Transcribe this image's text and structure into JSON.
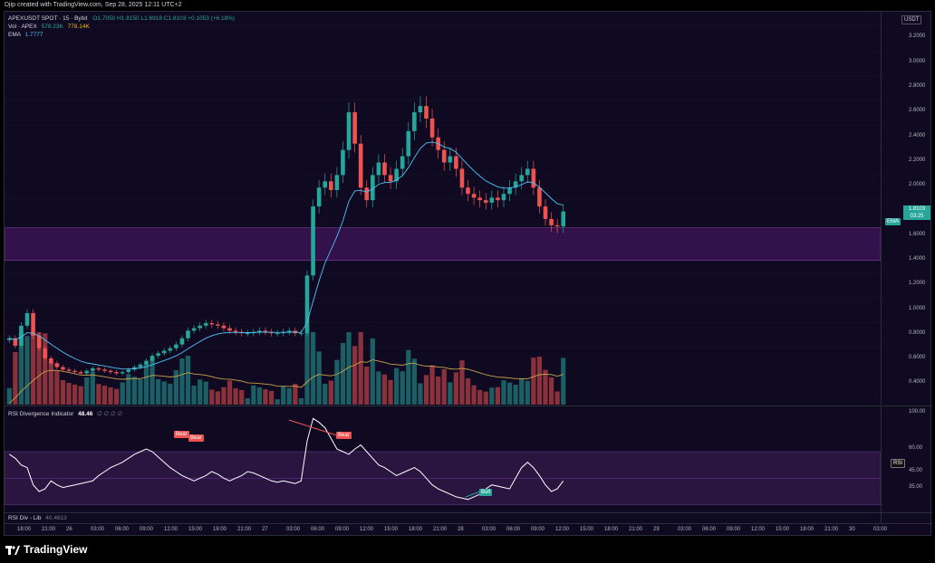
{
  "header": {
    "credit": "Djip created with TradingView.com, Sep 28, 2025 12:11 UTC+2"
  },
  "legend": {
    "symbol": "APEXUSDT SPOT · 15 · Bybit",
    "ohlc": "O1.7050 H1.8150 L1.6918 C1.8103 +0.1053 (+6.18%)",
    "vol_label": "Vol · APEX",
    "vol_value1": "578.23K",
    "vol_value2": "778.14K",
    "ema_label": "EMA",
    "ema_value": "1.7777"
  },
  "price_axis": {
    "currency": "USDT",
    "ticks": [
      "3.2000",
      "3.0000",
      "2.8000",
      "2.6000",
      "2.4000",
      "2.2000",
      "2.0000",
      "1.6000",
      "1.4000",
      "1.2000",
      "1.0000",
      "0.8000",
      "0.6000",
      "0.4000"
    ],
    "last_price": "1.8103",
    "countdown": "03:25",
    "ema_tag": "EMA"
  },
  "rsi": {
    "title": "RSI Divergence Indicator",
    "value": "48.46",
    "extra": "∅ ∅ ∅ ∅",
    "ticks": [
      "100.00",
      "60.00",
      "45.00",
      "35.00",
      "27.00"
    ],
    "tag": "RSI",
    "bear_label": "Bear",
    "bull_label": "Bull"
  },
  "lib_label": "RSI Div - Lib",
  "lib_value": "40.4613",
  "time_axis": [
    "18:00",
    "21:00",
    "26",
    "03:00",
    "06:00",
    "09:00",
    "12:00",
    "15:00",
    "18:00",
    "21:00",
    "27",
    "03:00",
    "06:00",
    "09:00",
    "12:00",
    "15:00",
    "18:00",
    "21:00",
    "28",
    "03:00",
    "06:00",
    "09:00",
    "12:00",
    "15:00",
    "18:00",
    "21:00",
    "29",
    "03:00",
    "06:00",
    "09:00",
    "12:00",
    "15:00",
    "18:00",
    "21:00",
    "30",
    "03:00"
  ],
  "brand": "TradingView",
  "colors": {
    "bg": "#0f0a22",
    "up": "#26a69a",
    "down": "#ef5350",
    "zone": "#3a1454",
    "ema": "#4fc3f7",
    "rsi_band": "#2a1440"
  },
  "chart_data": {
    "type": "candlestick",
    "ylim": [
      0.3,
      3.3
    ],
    "ema_last": 1.7777,
    "support_zone": [
      1.42,
      1.68
    ],
    "closes": [
      0.8,
      0.74,
      0.9,
      1.0,
      0.82,
      0.72,
      0.64,
      0.6,
      0.57,
      0.55,
      0.54,
      0.53,
      0.52,
      0.54,
      0.56,
      0.55,
      0.54,
      0.53,
      0.52,
      0.53,
      0.55,
      0.57,
      0.59,
      0.62,
      0.66,
      0.68,
      0.7,
      0.72,
      0.75,
      0.8,
      0.86,
      0.88,
      0.9,
      0.92,
      0.91,
      0.9,
      0.88,
      0.86,
      0.85,
      0.84,
      0.84,
      0.85,
      0.86,
      0.85,
      0.84,
      0.84,
      0.85,
      0.86,
      0.84,
      0.84,
      1.3,
      1.85,
      2.0,
      2.05,
      1.98,
      2.1,
      2.3,
      2.6,
      2.35,
      2.0,
      1.9,
      2.1,
      2.2,
      2.1,
      2.05,
      2.15,
      2.25,
      2.45,
      2.6,
      2.65,
      2.55,
      2.4,
      2.3,
      2.2,
      2.25,
      2.15,
      2.0,
      1.95,
      1.92,
      1.9,
      1.88,
      1.92,
      1.9,
      1.95,
      2.0,
      2.05,
      2.1,
      2.15,
      2.0,
      1.85,
      1.75,
      1.7,
      1.69,
      1.81
    ],
    "rsi": [
      68,
      65,
      60,
      58,
      45,
      40,
      42,
      48,
      45,
      43,
      44,
      45,
      46,
      47,
      48,
      52,
      55,
      58,
      60,
      62,
      65,
      68,
      70,
      72,
      70,
      66,
      62,
      58,
      55,
      52,
      50,
      48,
      50,
      52,
      55,
      53,
      50,
      48,
      50,
      52,
      55,
      54,
      52,
      50,
      48,
      47,
      48,
      47,
      46,
      48,
      78,
      95,
      92,
      88,
      80,
      72,
      70,
      68,
      72,
      75,
      70,
      65,
      60,
      58,
      55,
      52,
      54,
      56,
      58,
      55,
      50,
      45,
      42,
      40,
      38,
      36,
      35,
      34,
      36,
      38,
      42,
      45,
      44,
      43,
      42,
      50,
      58,
      62,
      58,
      52,
      45,
      40,
      42,
      48
    ]
  }
}
